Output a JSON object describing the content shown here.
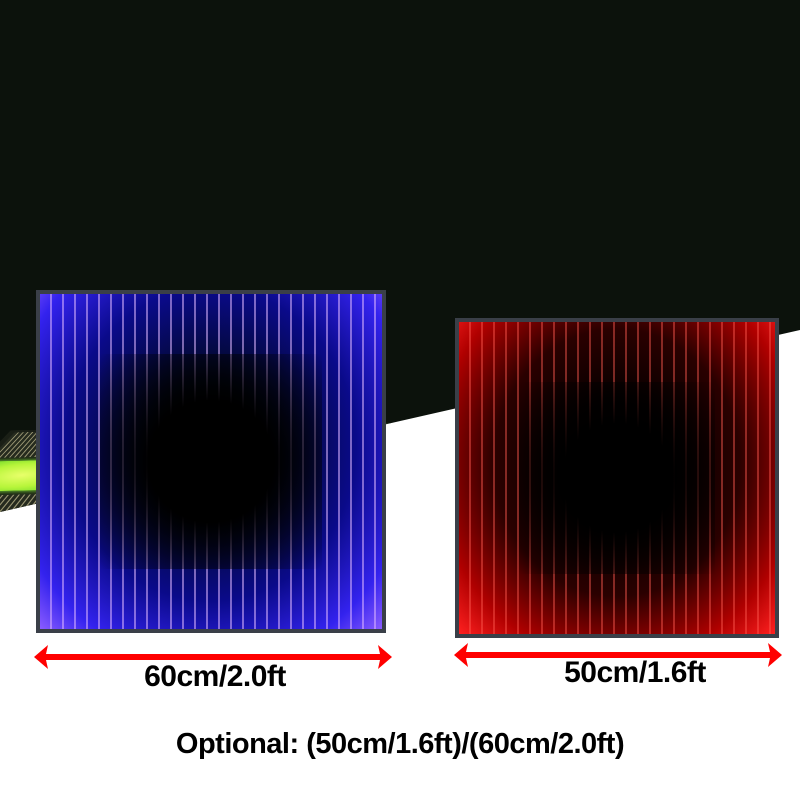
{
  "sizes": {
    "large": "60cm/2.0ft",
    "small": "50cm/1.6ft"
  },
  "caption": "Optional: (50cm/1.6ft)/(60cm/2.0ft)",
  "colors": {
    "floor_glow": "#b7f53a",
    "blue_tile": "#2a22ee",
    "red_tile": "#ff2020",
    "arrow": "#ff0000"
  }
}
